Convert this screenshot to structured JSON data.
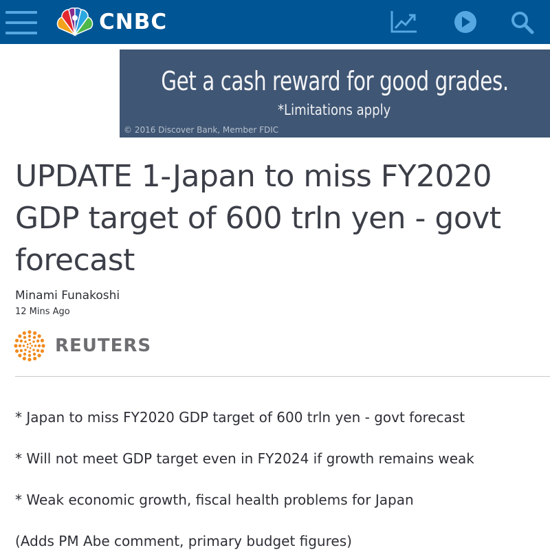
{
  "header": {
    "brand": "CNBC",
    "icons": [
      "hamburger-menu-icon",
      "peacock-logo-icon",
      "stock-chart-icon",
      "play-icon",
      "search-icon"
    ],
    "colors": {
      "bar": "#005594",
      "icon": "#56a8e2"
    }
  },
  "ad": {
    "headline": "Get a cash reward for good grades.",
    "limitation": "*Limitations apply",
    "legal": "© 2016 Discover Bank, Member FDIC",
    "background": "#3f5674"
  },
  "article": {
    "headline": "UPDATE 1-Japan to miss FY2020 GDP target of 600 trln yen - govt forecast",
    "author": "Minami Funakoshi",
    "timestamp": "12 Mins Ago",
    "source": "REUTERS",
    "bullets": [
      "* Japan to miss FY2020 GDP target of 600 trln yen - govt forecast",
      "* Will not meet GDP target even in FY2024 if growth remains weak",
      "* Weak economic growth, fiscal health problems for Japan",
      "(Adds PM Abe comment, primary budget figures)"
    ]
  }
}
